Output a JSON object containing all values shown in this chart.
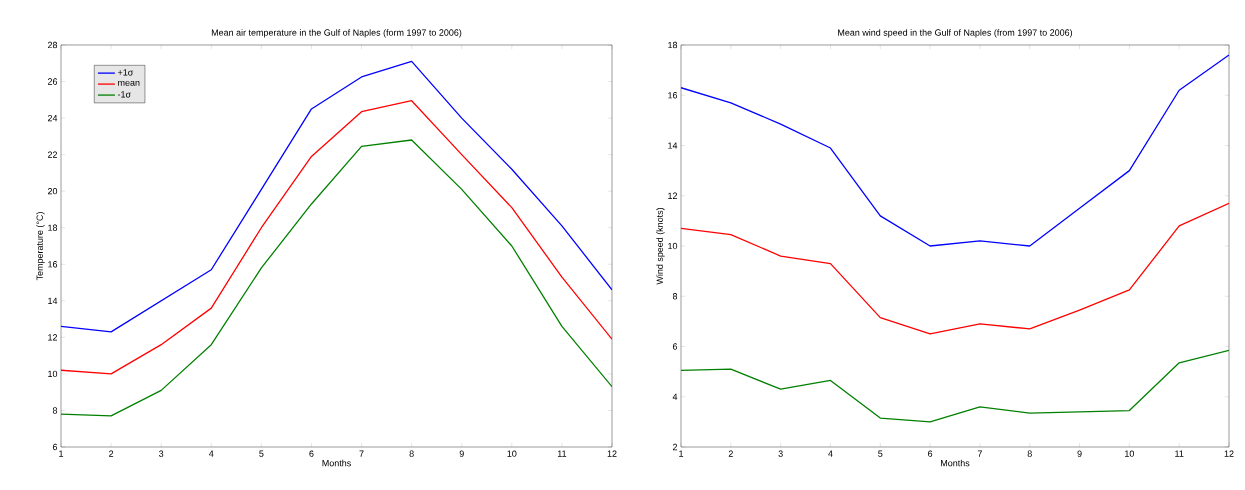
{
  "chart_data": [
    {
      "type": "line",
      "title": "Mean air temperature in the Gulf of Naples (form 1997 to 2006)",
      "xlabel": "Months",
      "ylabel": "Temperature (°C)",
      "x": [
        1,
        2,
        3,
        4,
        5,
        6,
        7,
        8,
        9,
        10,
        11,
        12
      ],
      "series": [
        {
          "name": "+1σ",
          "color": "#0000ff",
          "values": [
            12.6,
            12.3,
            14.0,
            15.7,
            20.1,
            24.5,
            26.25,
            27.1,
            24.0,
            21.2,
            18.1,
            14.6
          ]
        },
        {
          "name": "mean",
          "color": "#ff0000",
          "values": [
            10.2,
            10.0,
            11.6,
            13.6,
            18.0,
            21.9,
            24.35,
            24.95,
            22.0,
            19.1,
            15.3,
            11.9
          ]
        },
        {
          "name": "-1σ",
          "color": "#008000",
          "values": [
            7.8,
            7.7,
            9.1,
            11.6,
            15.8,
            19.3,
            22.45,
            22.8,
            20.1,
            17.0,
            12.6,
            9.3
          ]
        }
      ],
      "xlim": [
        1,
        12
      ],
      "ylim": [
        6,
        28
      ],
      "xticks": [
        1,
        2,
        3,
        4,
        5,
        6,
        7,
        8,
        9,
        10,
        11,
        12
      ],
      "yticks": [
        6,
        8,
        10,
        12,
        14,
        16,
        18,
        20,
        22,
        24,
        26,
        28
      ],
      "legend": "top left",
      "grid": false,
      "marker": "none",
      "line_style": "solid"
    },
    {
      "type": "line",
      "title": "Mean wind speed in the Gulf of Naples (from 1997 to 2006)",
      "xlabel": "Months",
      "ylabel": "Wind speed (knots)",
      "x": [
        1,
        2,
        3,
        4,
        5,
        6,
        7,
        8,
        9,
        10,
        11,
        12
      ],
      "series": [
        {
          "color": "#0000ff",
          "values": [
            16.3,
            15.7,
            14.85,
            13.9,
            11.2,
            10.0,
            10.2,
            10.0,
            11.5,
            13.0,
            16.2,
            17.6
          ]
        },
        {
          "color": "#ff0000",
          "values": [
            10.7,
            10.45,
            9.6,
            9.3,
            7.15,
            6.5,
            6.9,
            6.7,
            7.45,
            8.25,
            10.8,
            11.7
          ]
        },
        {
          "color": "#008000",
          "values": [
            5.05,
            5.1,
            4.3,
            4.65,
            3.15,
            3.0,
            3.6,
            3.35,
            3.4,
            3.45,
            5.35,
            5.85
          ]
        }
      ],
      "xlim": [
        1,
        12
      ],
      "ylim": [
        2,
        18
      ],
      "xticks": [
        1,
        2,
        3,
        4,
        5,
        6,
        7,
        8,
        9,
        10,
        11,
        12
      ],
      "yticks": [
        2,
        4,
        6,
        8,
        10,
        12,
        14,
        16,
        18
      ],
      "legend": false,
      "grid": false,
      "marker": "none",
      "line_style": "solid"
    }
  ]
}
